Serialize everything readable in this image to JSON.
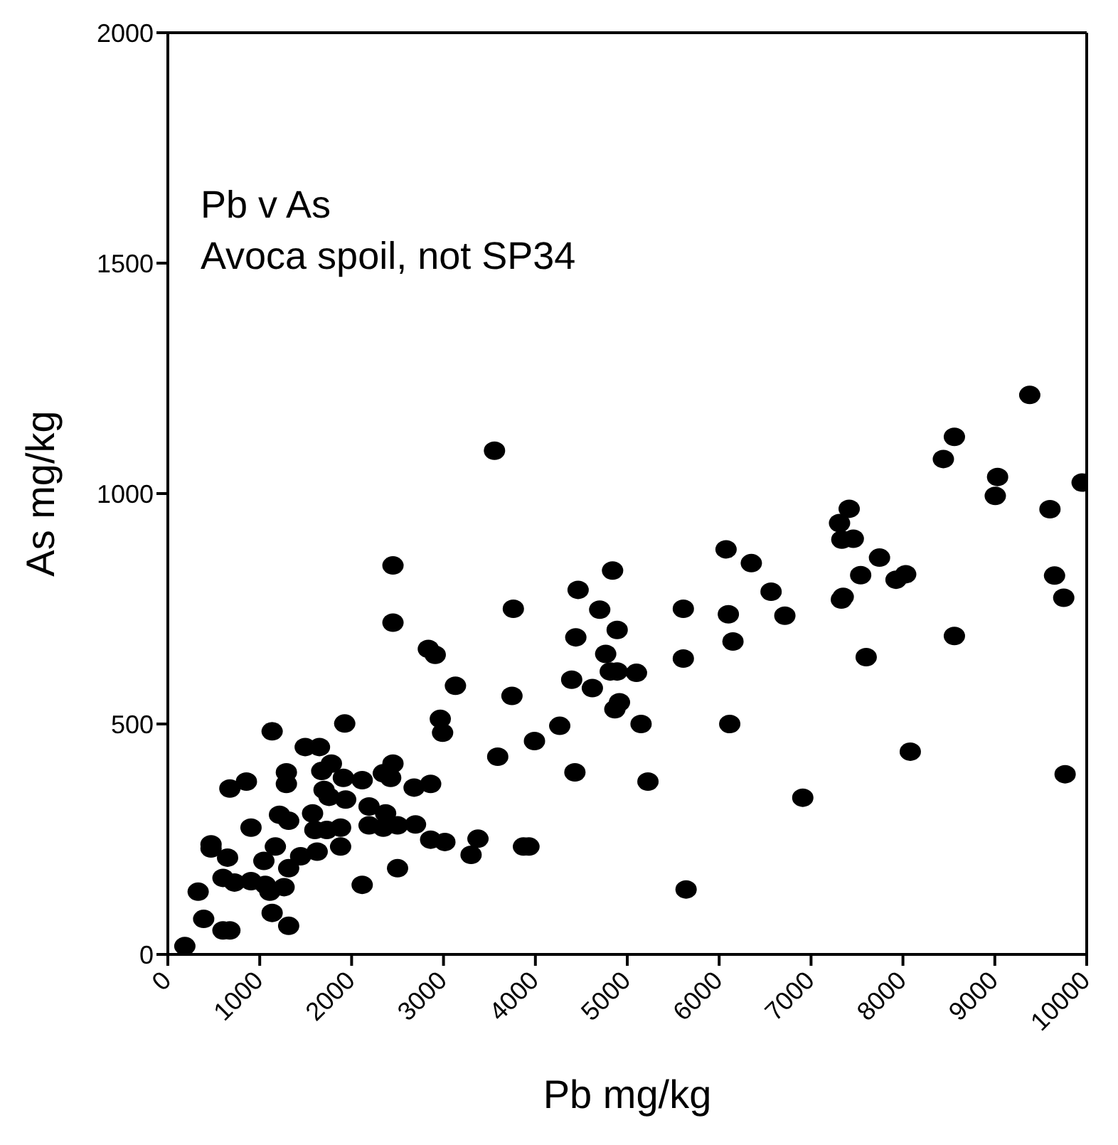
{
  "chart_data": {
    "type": "scatter",
    "title": "Pb v As",
    "subtitle": "Avoca spoil, not SP34",
    "xlabel": "Pb mg/kg",
    "ylabel": "As mg/kg",
    "xlim": [
      0,
      10000
    ],
    "ylim": [
      0,
      2000
    ],
    "xticks": [
      0,
      1000,
      2000,
      3000,
      4000,
      5000,
      6000,
      7000,
      8000,
      9000,
      10000
    ],
    "yticks": [
      0,
      500,
      1000,
      1500,
      2000
    ],
    "marker": "circle",
    "series": [
      {
        "color": "#000000",
        "x": [
          185,
          330,
          390,
          600,
          675,
          470,
          470,
          650,
          600,
          725,
          905,
          1060,
          1110,
          1135,
          1315,
          1265,
          1315,
          1045,
          1170,
          905,
          675,
          855,
          1135,
          1215,
          1315,
          1290,
          1290,
          1445,
          1495,
          1650,
          1575,
          1625,
          1600,
          1675,
          1780,
          1700,
          1755,
          1880,
          1880,
          1925,
          1910,
          1935,
          1730,
          2115,
          2115,
          2190,
          2190,
          2345,
          2425,
          2450,
          2370,
          2345,
          2500,
          2500,
          2450,
          2450,
          2680,
          2860,
          2695,
          2860,
          3015,
          2835,
          2910,
          3130,
          2965,
          2990,
          3300,
          3375,
          3555,
          3760,
          3745,
          3590,
          3990,
          4265,
          4430,
          3870,
          3930,
          4465,
          4840,
          4700,
          4440,
          4890,
          4765,
          4395,
          4620,
          4815,
          4890,
          5100,
          4915,
          4865,
          5150,
          5225,
          5610,
          5610,
          5640,
          6075,
          6350,
          6565,
          6715,
          6100,
          6150,
          6115,
          6910,
          9380,
          8560,
          8440,
          9030,
          9005,
          9950,
          9600,
          7415,
          7310,
          7335,
          7460,
          7745,
          7540,
          7925,
          8030,
          7350,
          7330,
          9650,
          9750,
          8560,
          7600,
          8080,
          9765
        ],
        "values": [
          18,
          136,
          77,
          52,
          52,
          239,
          230,
          210,
          166,
          156,
          159,
          151,
          136,
          90,
          62,
          146,
          187,
          203,
          234,
          275,
          360,
          375,
          484,
          303,
          290,
          395,
          370,
          213,
          450,
          450,
          306,
          223,
          270,
          398,
          414,
          357,
          342,
          275,
          234,
          501,
          383,
          336,
          270,
          151,
          378,
          321,
          280,
          393,
          383,
          414,
          306,
          275,
          280,
          187,
          844,
          720,
          362,
          370,
          282,
          249,
          244,
          663,
          650,
          583,
          511,
          481,
          216,
          251,
          1093,
          750,
          561,
          429,
          463,
          496,
          395,
          234,
          234,
          791,
          833,
          748,
          688,
          704,
          652,
          596,
          578,
          614,
          614,
          611,
          547,
          532,
          500,
          375,
          750,
          642,
          141,
          879,
          849,
          787,
          735,
          738,
          679,
          500,
          340,
          1214,
          1123,
          1075,
          1036,
          995,
          1024,
          966,
          967,
          936,
          900,
          902,
          861,
          823,
          813,
          825,
          776,
          770,
          822,
          774,
          691,
          645,
          440,
          391
        ]
      }
    ]
  }
}
